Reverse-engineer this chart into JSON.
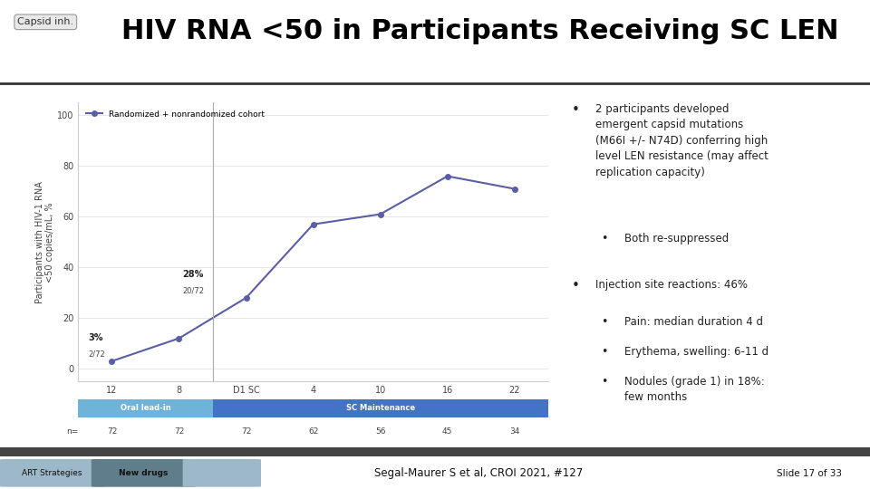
{
  "title": "HIV RNA <50 in Participants Receiving SC LEN",
  "capsid_label": "Capsid inh.",
  "bg_color": "#ffffff",
  "title_color": "#000000",
  "title_fontsize": 22,
  "line_color": "#5b5ea6",
  "line_x": [
    0,
    1,
    2,
    3,
    4,
    5,
    6
  ],
  "line_y": [
    3,
    12,
    28,
    57,
    61,
    76,
    71
  ],
  "x_tick_labels": [
    "12",
    "8",
    "D1 SC",
    "4",
    "10",
    "16",
    "22"
  ],
  "y_ticks": [
    0,
    20,
    40,
    60,
    80,
    100
  ],
  "ylabel": "Participants with HIV-1 RNA\n<50 copies/mL, %",
  "legend_label": "Randomized + nonrandomized cohort",
  "phase_oral": "Oral lead-in",
  "phase_sc": "SC Maintenance",
  "phase_oral_color": "#70b3d8",
  "phase_sc_color": "#4472c4",
  "n_values": [
    "72",
    "72",
    "72",
    "62",
    "56",
    "45",
    "34"
  ],
  "footer_bg": "#888888",
  "footer_citation": "Segal-Maurer S et al, CROI 2021, #127",
  "footer_slide": "Slide 17 of 33",
  "separator_color": "#333333"
}
